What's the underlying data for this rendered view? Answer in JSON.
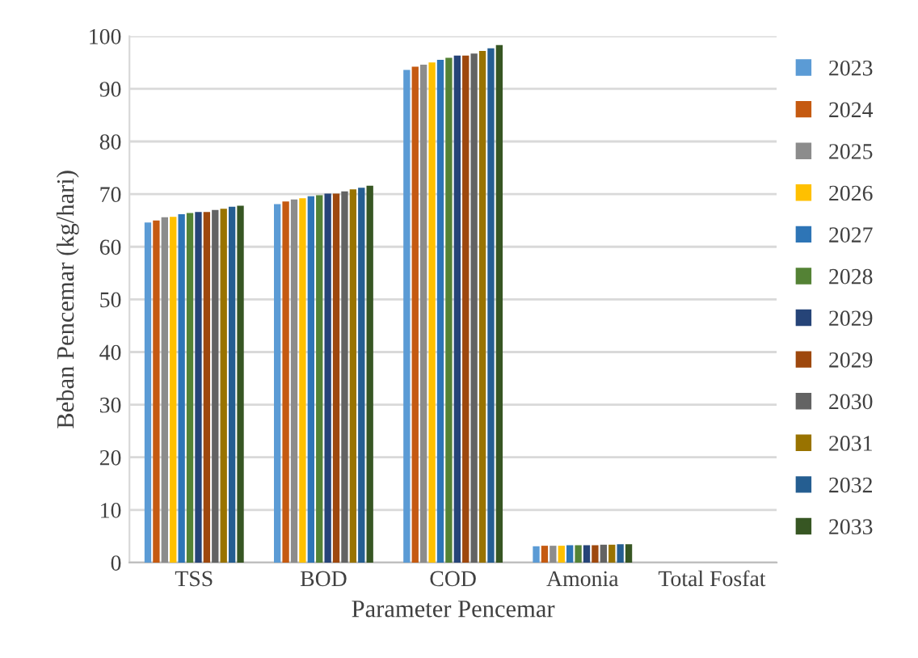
{
  "chart_data": {
    "type": "bar",
    "xlabel": "Parameter Pencemar",
    "ylabel": "Beban Pencemar (kg/hari)",
    "categories": [
      "TSS",
      "BOD",
      "COD",
      "Amonia",
      "Total Fosfat"
    ],
    "ylim": [
      0,
      100
    ],
    "yticks": [
      0,
      10,
      20,
      30,
      40,
      50,
      60,
      70,
      80,
      90,
      100
    ],
    "grid": "y",
    "legend": "right",
    "series": [
      {
        "name": "2023",
        "color": "#5b9bd5",
        "values": [
          64.6,
          68.1,
          93.6,
          3.1,
          null
        ]
      },
      {
        "name": "2024",
        "color": "#c55a11",
        "values": [
          65.0,
          68.6,
          94.2,
          3.2,
          null
        ]
      },
      {
        "name": "2025",
        "color": "#8c8c8c",
        "values": [
          65.6,
          69.0,
          94.6,
          3.2,
          null
        ]
      },
      {
        "name": "2026",
        "color": "#ffc000",
        "values": [
          65.7,
          69.2,
          95.0,
          3.2,
          null
        ]
      },
      {
        "name": "2027",
        "color": "#2e75b6",
        "values": [
          66.2,
          69.6,
          95.5,
          3.3,
          null
        ]
      },
      {
        "name": "2028",
        "color": "#548235",
        "values": [
          66.4,
          69.8,
          95.9,
          3.3,
          null
        ]
      },
      {
        "name": "2029",
        "color": "#264478",
        "values": [
          66.6,
          70.1,
          96.3,
          3.3,
          null
        ]
      },
      {
        "name": "2029",
        "color": "#9e480e",
        "values": [
          66.6,
          70.1,
          96.3,
          3.3,
          null
        ]
      },
      {
        "name": "2030",
        "color": "#636363",
        "values": [
          67.0,
          70.5,
          96.7,
          3.4,
          null
        ]
      },
      {
        "name": "2031",
        "color": "#997300",
        "values": [
          67.2,
          70.9,
          97.2,
          3.4,
          null
        ]
      },
      {
        "name": "2032",
        "color": "#255e91",
        "values": [
          67.6,
          71.2,
          97.7,
          3.5,
          null
        ]
      },
      {
        "name": "2033",
        "color": "#375623",
        "values": [
          67.8,
          71.6,
          98.3,
          3.5,
          null
        ]
      }
    ]
  }
}
